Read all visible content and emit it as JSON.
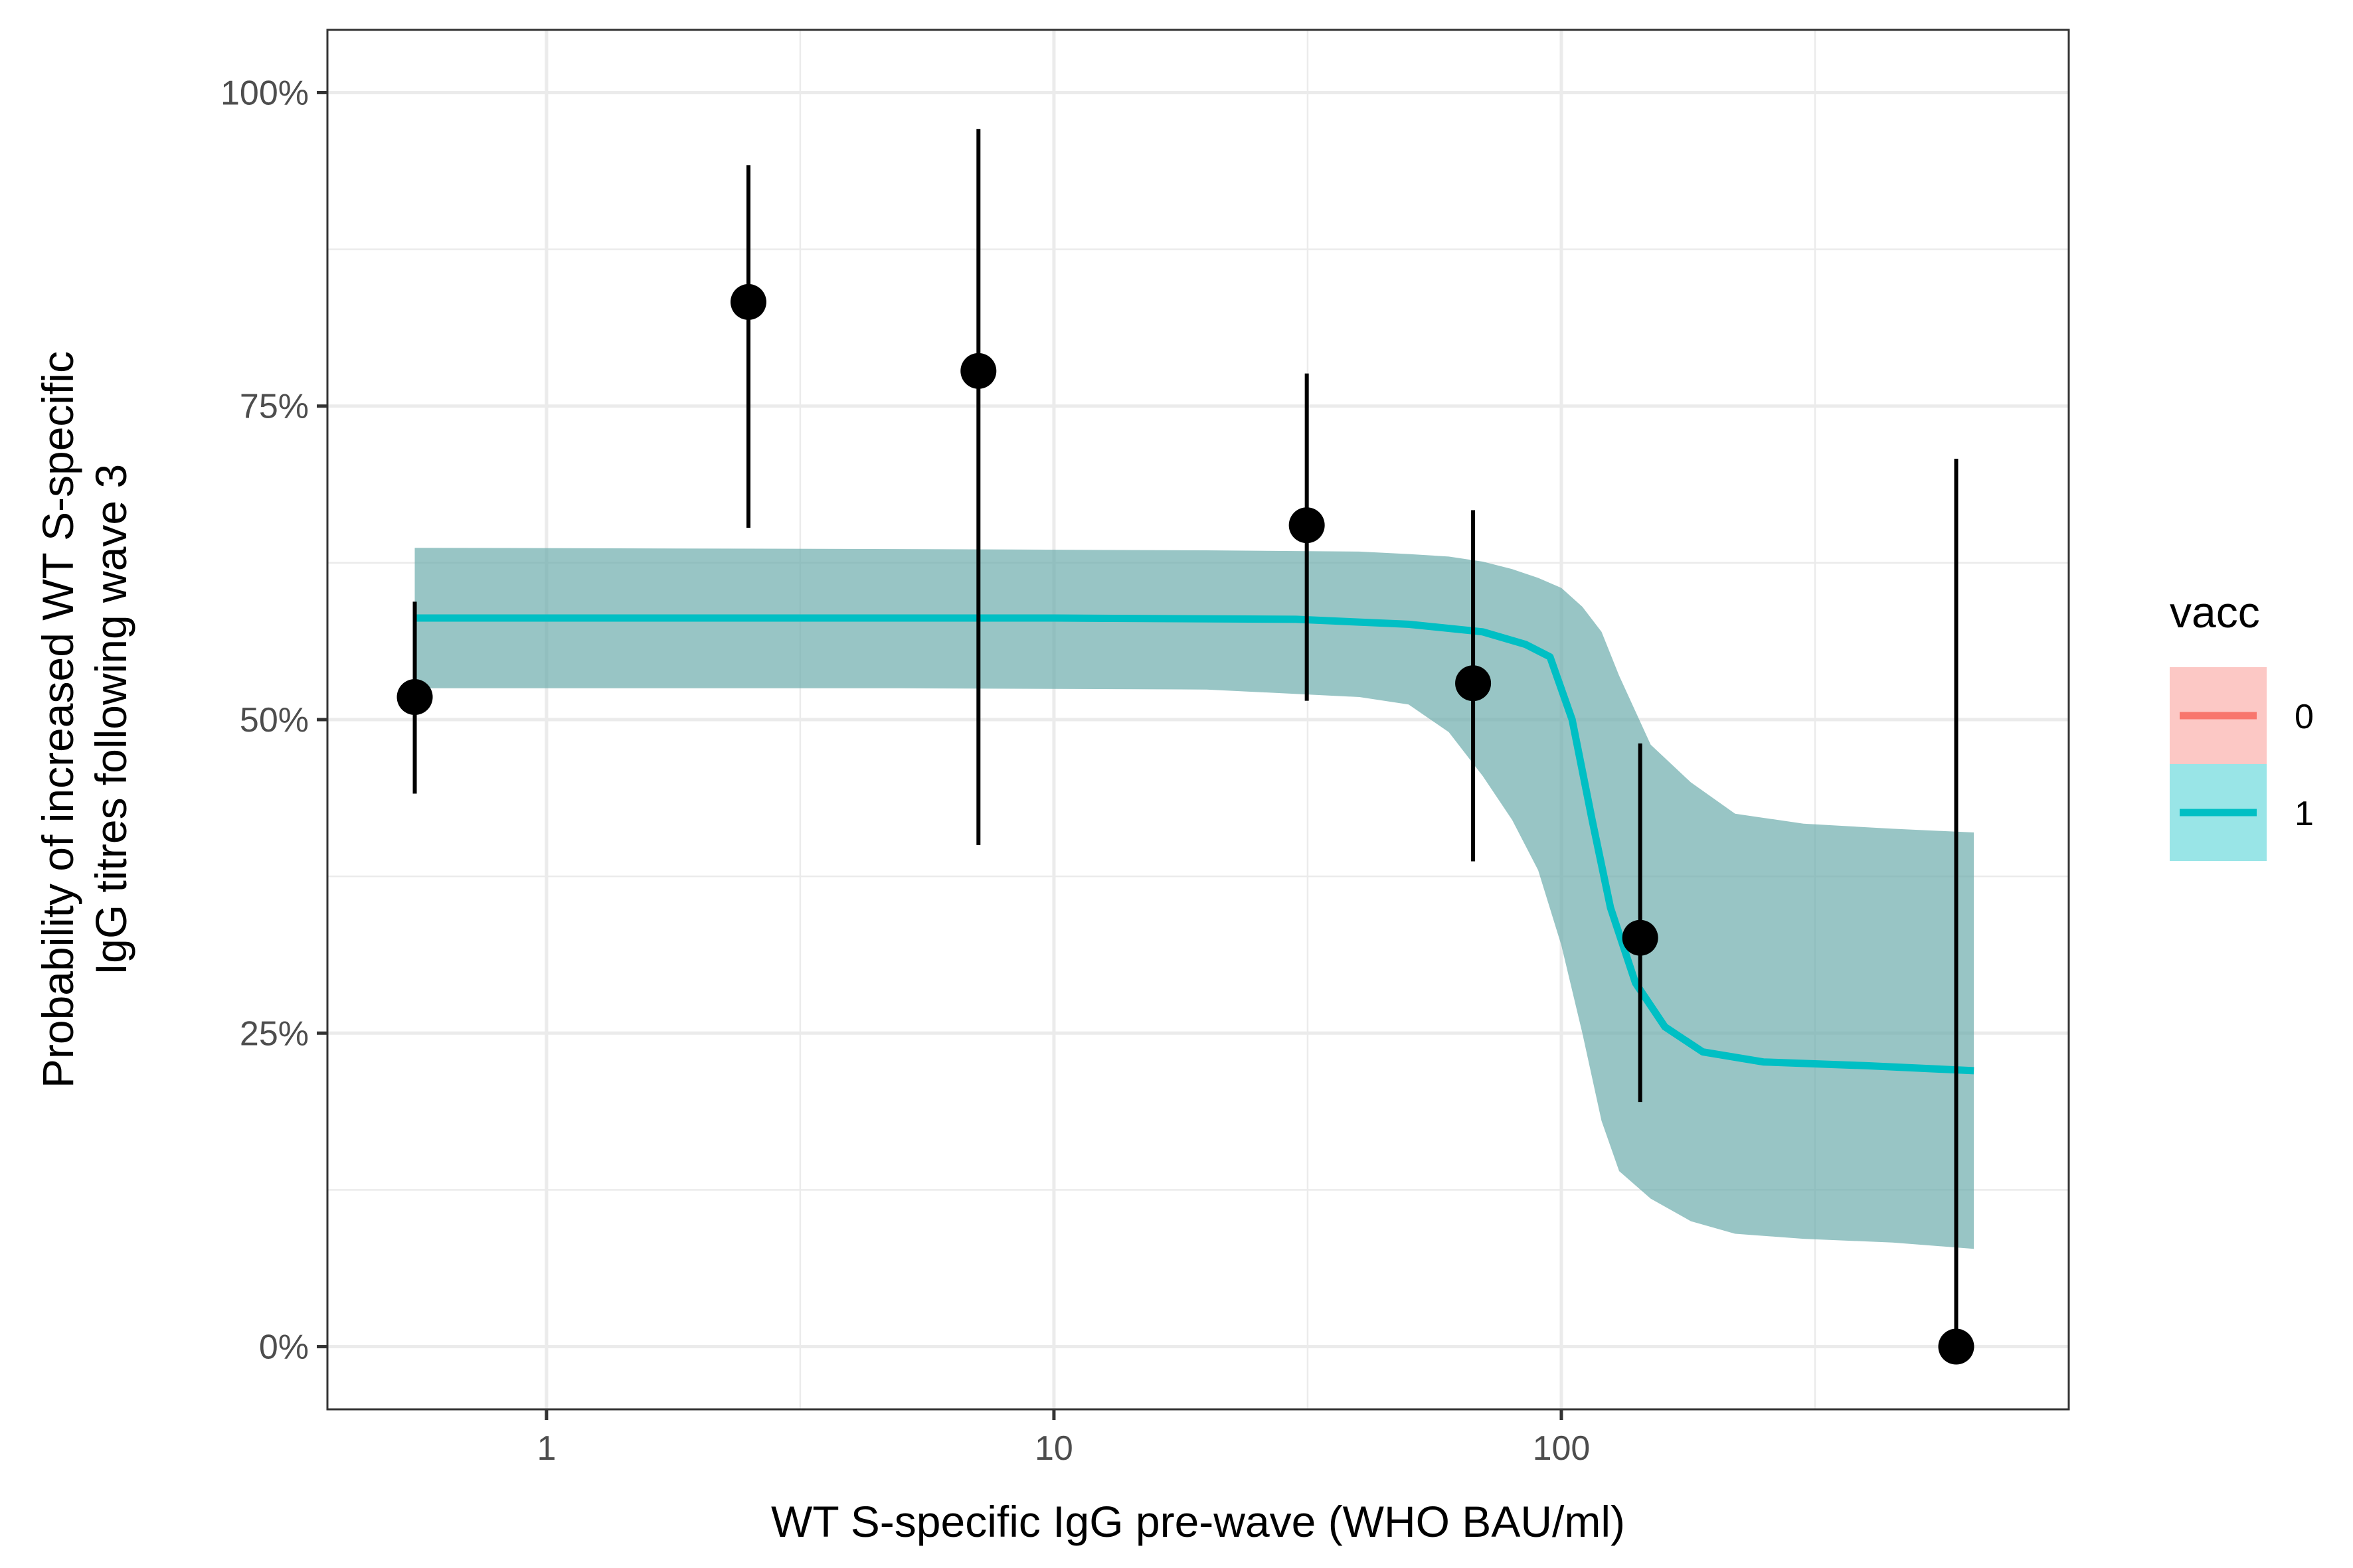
{
  "chart_data": {
    "type": "line",
    "title": "",
    "xlabel": "WT S-specific IgG pre-wave (WHO BAU/ml)",
    "ylabel_lines": [
      "Probability of increased WT S-specific",
      "IgG titres following wave 3"
    ],
    "x_scale": "log10",
    "xlim": [
      0.37,
      1000
    ],
    "ylim": [
      -0.05,
      1.05
    ],
    "x_ticks": [
      {
        "value": 1,
        "label": "1"
      },
      {
        "value": 10,
        "label": "10"
      },
      {
        "value": 100,
        "label": "100"
      }
    ],
    "x_minor_ticks": [
      3.1623,
      31.623,
      316.23
    ],
    "y_ticks": [
      {
        "value": 0,
        "label": "0%"
      },
      {
        "value": 0.25,
        "label": "25%"
      },
      {
        "value": 0.5,
        "label": "50%"
      },
      {
        "value": 0.75,
        "label": "75%"
      },
      {
        "value": 1.0,
        "label": "100%"
      }
    ],
    "y_minor_ticks": [
      0.125,
      0.375,
      0.625,
      0.875
    ],
    "grid": true,
    "legend": {
      "title": "vacc",
      "placement": "right",
      "entries": [
        {
          "label": "0",
          "line_color": "#F8766D",
          "fill_color": "#F8766D"
        },
        {
          "label": "1",
          "line_color": "#00BFC4",
          "fill_color": "#00BFC4"
        }
      ]
    },
    "ribbon": {
      "series": "1",
      "fill_color": "#67AAAA",
      "points": [
        {
          "x": 0.55,
          "lower": 0.525,
          "upper": 0.637
        },
        {
          "x": 5,
          "lower": 0.525,
          "upper": 0.636
        },
        {
          "x": 20,
          "lower": 0.524,
          "upper": 0.635
        },
        {
          "x": 40,
          "lower": 0.518,
          "upper": 0.634
        },
        {
          "x": 50,
          "lower": 0.512,
          "upper": 0.632
        },
        {
          "x": 60,
          "lower": 0.49,
          "upper": 0.63
        },
        {
          "x": 70,
          "lower": 0.455,
          "upper": 0.626
        },
        {
          "x": 80,
          "lower": 0.42,
          "upper": 0.62
        },
        {
          "x": 90,
          "lower": 0.38,
          "upper": 0.613
        },
        {
          "x": 100,
          "lower": 0.32,
          "upper": 0.605
        },
        {
          "x": 110,
          "lower": 0.25,
          "upper": 0.59
        },
        {
          "x": 120,
          "lower": 0.18,
          "upper": 0.57
        },
        {
          "x": 130,
          "lower": 0.14,
          "upper": 0.535
        },
        {
          "x": 150,
          "lower": 0.118,
          "upper": 0.48
        },
        {
          "x": 180,
          "lower": 0.1,
          "upper": 0.45
        },
        {
          "x": 220,
          "lower": 0.09,
          "upper": 0.425
        },
        {
          "x": 300,
          "lower": 0.086,
          "upper": 0.417
        },
        {
          "x": 450,
          "lower": 0.083,
          "upper": 0.413
        },
        {
          "x": 650,
          "lower": 0.078,
          "upper": 0.41
        }
      ]
    },
    "series": [
      {
        "name": "1",
        "color": "#00BFC4",
        "points": [
          {
            "x": 0.55,
            "y": 0.581
          },
          {
            "x": 10,
            "y": 0.581
          },
          {
            "x": 30,
            "y": 0.58
          },
          {
            "x": 50,
            "y": 0.576
          },
          {
            "x": 70,
            "y": 0.57
          },
          {
            "x": 85,
            "y": 0.56
          },
          {
            "x": 95,
            "y": 0.55
          },
          {
            "x": 105,
            "y": 0.5
          },
          {
            "x": 115,
            "y": 0.42
          },
          {
            "x": 125,
            "y": 0.35
          },
          {
            "x": 140,
            "y": 0.29
          },
          {
            "x": 160,
            "y": 0.255
          },
          {
            "x": 190,
            "y": 0.235
          },
          {
            "x": 250,
            "y": 0.227
          },
          {
            "x": 400,
            "y": 0.224
          },
          {
            "x": 650,
            "y": 0.22
          }
        ]
      }
    ],
    "observed": [
      {
        "x": 0.55,
        "y": 0.518,
        "lower": 0.441,
        "upper": 0.594
      },
      {
        "x": 2.5,
        "y": 0.833,
        "lower": 0.653,
        "upper": 0.942
      },
      {
        "x": 7.1,
        "y": 0.778,
        "lower": 0.4,
        "upper": 0.971
      },
      {
        "x": 31.5,
        "y": 0.655,
        "lower": 0.515,
        "upper": 0.776
      },
      {
        "x": 67,
        "y": 0.529,
        "lower": 0.387,
        "upper": 0.667
      },
      {
        "x": 143,
        "y": 0.326,
        "lower": 0.195,
        "upper": 0.481
      },
      {
        "x": 600,
        "y": 0.0,
        "lower": 0.0,
        "upper": 0.708
      }
    ]
  }
}
